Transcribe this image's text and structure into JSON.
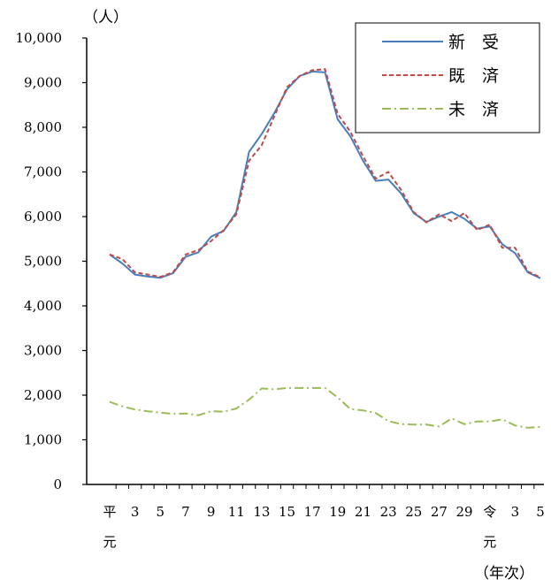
{
  "chart_data": {
    "type": "line",
    "y_unit": "（人）",
    "x_unit": "（年次）",
    "ylim": [
      0,
      10000
    ],
    "yticks": [
      0,
      1000,
      2000,
      3000,
      4000,
      5000,
      6000,
      7000,
      8000,
      9000,
      10000
    ],
    "ytick_labels": [
      "0",
      "1,000",
      "2,000",
      "3,000",
      "4,000",
      "5,000",
      "6,000",
      "7,000",
      "8,000",
      "9,000",
      "10,000"
    ],
    "x_labels": [
      {
        "index": 0,
        "line1": "平",
        "line2": "元"
      },
      {
        "index": 2,
        "line1": "3",
        "line2": ""
      },
      {
        "index": 4,
        "line1": "5",
        "line2": ""
      },
      {
        "index": 6,
        "line1": "7",
        "line2": ""
      },
      {
        "index": 8,
        "line1": "9",
        "line2": ""
      },
      {
        "index": 10,
        "line1": "11",
        "line2": ""
      },
      {
        "index": 12,
        "line1": "13",
        "line2": ""
      },
      {
        "index": 14,
        "line1": "15",
        "line2": ""
      },
      {
        "index": 16,
        "line1": "17",
        "line2": ""
      },
      {
        "index": 18,
        "line1": "19",
        "line2": ""
      },
      {
        "index": 20,
        "line1": "21",
        "line2": ""
      },
      {
        "index": 22,
        "line1": "23",
        "line2": ""
      },
      {
        "index": 24,
        "line1": "25",
        "line2": ""
      },
      {
        "index": 26,
        "line1": "27",
        "line2": ""
      },
      {
        "index": 28,
        "line1": "29",
        "line2": ""
      },
      {
        "index": 30,
        "line1": "令",
        "line2": "元"
      },
      {
        "index": 32,
        "line1": "3",
        "line2": ""
      },
      {
        "index": 34,
        "line1": "5",
        "line2": ""
      }
    ],
    "x_count": 35,
    "legend_position": "top-right",
    "series": [
      {
        "name": "新　受",
        "color": "#4a7ebb",
        "style": "solid",
        "values": [
          5150,
          4950,
          4700,
          4660,
          4630,
          4730,
          5100,
          5200,
          5550,
          5680,
          6100,
          7450,
          7850,
          8320,
          8850,
          9150,
          9250,
          9230,
          8180,
          7800,
          7250,
          6800,
          6830,
          6520,
          6080,
          5880,
          6000,
          6100,
          5950,
          5730,
          5780,
          5380,
          5180,
          4750,
          4620
        ]
      },
      {
        "name": "既　済",
        "color": "#be4b48",
        "style": "dashed",
        "values": [
          5150,
          5050,
          4750,
          4700,
          4650,
          4750,
          5150,
          5250,
          5450,
          5700,
          6050,
          7250,
          7600,
          8250,
          8900,
          9150,
          9280,
          9300,
          8300,
          7900,
          7350,
          6850,
          7000,
          6600,
          6100,
          5870,
          6050,
          5900,
          6080,
          5700,
          5820,
          5300,
          5300,
          4770,
          4640
        ]
      },
      {
        "name": "未　済",
        "color": "#9bbb59",
        "style": "dashdot",
        "values": [
          1850,
          1750,
          1680,
          1640,
          1610,
          1580,
          1590,
          1550,
          1640,
          1630,
          1700,
          1900,
          2150,
          2130,
          2160,
          2160,
          2160,
          2160,
          1950,
          1690,
          1660,
          1600,
          1420,
          1350,
          1340,
          1340,
          1300,
          1480,
          1350,
          1410,
          1410,
          1460,
          1320,
          1270,
          1290
        ]
      }
    ]
  }
}
